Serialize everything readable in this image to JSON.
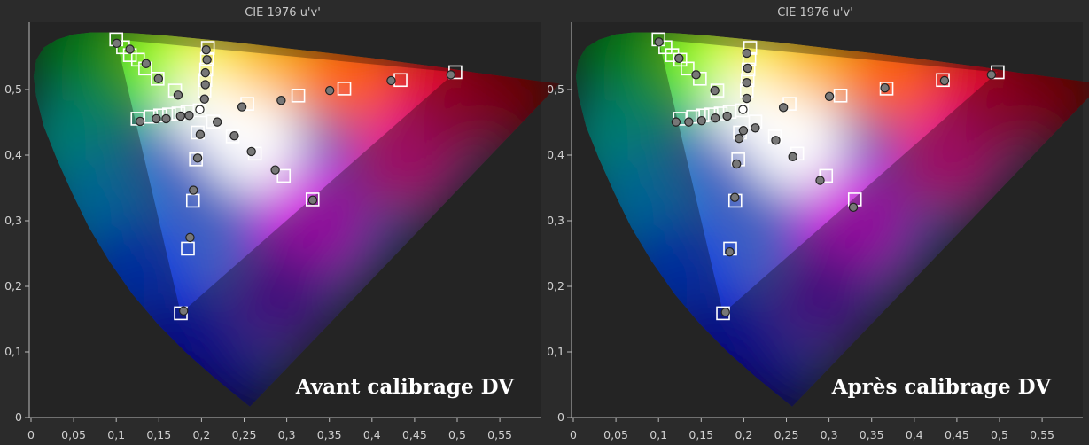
{
  "chart_data": [
    {
      "type": "scatter",
      "title": "CIE 1976 u'v'",
      "caption": "Avant calibrage  DV",
      "x_ticks": [
        "0",
        "0,05",
        "0,1",
        "0,15",
        "0,2",
        "0,25",
        "0,3",
        "0,35",
        "0,4",
        "0,45",
        "0,5",
        "0,55"
      ],
      "y_ticks": [
        "0",
        "0,1",
        "0,2",
        "0,3",
        "0,4",
        "0,5"
      ],
      "xlim": [
        0,
        0.6
      ],
      "ylim": [
        0,
        0.6
      ],
      "grid": false,
      "series": [
        {
          "name": "",
          "marker": "open-square",
          "color": "#ffffff",
          "points": [
            [
              0.1978,
              0.4683
            ],
            [
              0.1,
              0.5765
            ],
            [
              0.108,
              0.5645
            ],
            [
              0.116,
              0.5525
            ],
            [
              0.1255,
              0.5455
            ],
            [
              0.134,
              0.532
            ],
            [
              0.1485,
              0.5165
            ],
            [
              0.169,
              0.4985
            ],
            [
              0.2075,
              0.5635
            ],
            [
              0.2065,
              0.5465
            ],
            [
              0.2055,
              0.5305
            ],
            [
              0.2045,
              0.5145
            ],
            [
              0.2035,
              0.4985
            ],
            [
              0.125,
              0.4555
            ],
            [
              0.1405,
              0.4585
            ],
            [
              0.1515,
              0.4605
            ],
            [
              0.162,
              0.462
            ],
            [
              0.173,
              0.4635
            ],
            [
              0.1835,
              0.466
            ],
            [
              0.1955,
              0.4345
            ],
            [
              0.1935,
              0.3935
            ],
            [
              0.19,
              0.3305
            ],
            [
              0.184,
              0.2575
            ],
            [
              0.1757,
              0.1589
            ],
            [
              0.2136,
              0.4512
            ],
            [
              0.2366,
              0.4285
            ],
            [
              0.2626,
              0.4023
            ],
            [
              0.2965,
              0.3684
            ],
            [
              0.3303,
              0.3325
            ],
            [
              0.2537,
              0.4782
            ],
            [
              0.3135,
              0.4908
            ],
            [
              0.3675,
              0.5015
            ],
            [
              0.4335,
              0.5145
            ],
            [
              0.4978,
              0.5264
            ]
          ]
        },
        {
          "name": "",
          "marker": "filled-circle",
          "color": "#777777",
          "points": [
            [
              0.198,
              0.4695
            ],
            [
              0.1005,
              0.5705
            ],
            [
              0.116,
              0.5615
            ],
            [
              0.135,
              0.5395
            ],
            [
              0.1495,
              0.5165
            ],
            [
              0.1725,
              0.4915
            ],
            [
              0.2055,
              0.5605
            ],
            [
              0.2065,
              0.5455
            ],
            [
              0.2045,
              0.5255
            ],
            [
              0.2045,
              0.5075
            ],
            [
              0.2035,
              0.4855
            ],
            [
              0.128,
              0.4515
            ],
            [
              0.147,
              0.4555
            ],
            [
              0.1585,
              0.4555
            ],
            [
              0.1755,
              0.4595
            ],
            [
              0.1855,
              0.4605
            ],
            [
              0.1985,
              0.4315
            ],
            [
              0.1955,
              0.3955
            ],
            [
              0.1905,
              0.3465
            ],
            [
              0.1865,
              0.2745
            ],
            [
              0.179,
              0.1625
            ],
            [
              0.2185,
              0.4505
            ],
            [
              0.2385,
              0.4295
            ],
            [
              0.2585,
              0.4055
            ],
            [
              0.2865,
              0.3775
            ],
            [
              0.3305,
              0.3315
            ],
            [
              0.2475,
              0.4735
            ],
            [
              0.2935,
              0.4835
            ],
            [
              0.3505,
              0.4985
            ],
            [
              0.4225,
              0.5135
            ],
            [
              0.4925,
              0.5225
            ]
          ]
        }
      ]
    },
    {
      "type": "scatter",
      "title": "CIE 1976 u'v'",
      "caption": "Après calibrage DV",
      "x_ticks": [
        "0",
        "0,05",
        "0,1",
        "0,15",
        "0,2",
        "0,25",
        "0,3",
        "0,35",
        "0,4",
        "0,45",
        "0,5",
        "0,55"
      ],
      "y_ticks": [
        "0",
        "0,1",
        "0,2",
        "0,3",
        "0,4",
        "0,5"
      ],
      "xlim": [
        0,
        0.6
      ],
      "ylim": [
        0,
        0.6
      ],
      "grid": false,
      "series": [
        {
          "name": "",
          "marker": "open-square",
          "color": "#ffffff",
          "points": [
            [
              0.1978,
              0.4683
            ],
            [
              0.1,
              0.5765
            ],
            [
              0.108,
              0.5645
            ],
            [
              0.116,
              0.5525
            ],
            [
              0.1255,
              0.5455
            ],
            [
              0.134,
              0.532
            ],
            [
              0.1485,
              0.5165
            ],
            [
              0.169,
              0.4985
            ],
            [
              0.2075,
              0.5635
            ],
            [
              0.2065,
              0.5465
            ],
            [
              0.2055,
              0.5305
            ],
            [
              0.2045,
              0.5145
            ],
            [
              0.2035,
              0.4985
            ],
            [
              0.125,
              0.4555
            ],
            [
              0.1405,
              0.4585
            ],
            [
              0.1515,
              0.4605
            ],
            [
              0.162,
              0.462
            ],
            [
              0.173,
              0.4635
            ],
            [
              0.1835,
              0.466
            ],
            [
              0.1955,
              0.4345
            ],
            [
              0.1935,
              0.3935
            ],
            [
              0.19,
              0.3305
            ],
            [
              0.184,
              0.2575
            ],
            [
              0.1757,
              0.1589
            ],
            [
              0.2136,
              0.4512
            ],
            [
              0.2366,
              0.4285
            ],
            [
              0.2626,
              0.4023
            ],
            [
              0.2965,
              0.3684
            ],
            [
              0.3303,
              0.3325
            ],
            [
              0.2537,
              0.4782
            ],
            [
              0.3135,
              0.4908
            ],
            [
              0.3675,
              0.5015
            ],
            [
              0.4335,
              0.5145
            ],
            [
              0.4978,
              0.5264
            ]
          ]
        },
        {
          "name": "",
          "marker": "filled-circle",
          "color": "#777777",
          "points": [
            [
              0.199,
              0.4695
            ],
            [
              0.1005,
              0.5725
            ],
            [
              0.124,
              0.5475
            ],
            [
              0.144,
              0.5225
            ],
            [
              0.166,
              0.4985
            ],
            [
              0.2035,
              0.5555
            ],
            [
              0.2045,
              0.5325
            ],
            [
              0.2035,
              0.5105
            ],
            [
              0.2035,
              0.4865
            ],
            [
              0.1205,
              0.4505
            ],
            [
              0.1355,
              0.4505
            ],
            [
              0.1505,
              0.4525
            ],
            [
              0.1665,
              0.4565
            ],
            [
              0.1805,
              0.4595
            ],
            [
              0.1995,
              0.4375
            ],
            [
              0.1945,
              0.4255
            ],
            [
              0.1915,
              0.3865
            ],
            [
              0.1895,
              0.3355
            ],
            [
              0.1835,
              0.2525
            ],
            [
              0.1785,
              0.1605
            ],
            [
              0.2135,
              0.4415
            ],
            [
              0.2375,
              0.4225
            ],
            [
              0.2575,
              0.3975
            ],
            [
              0.2895,
              0.3615
            ],
            [
              0.3285,
              0.3205
            ],
            [
              0.2465,
              0.4725
            ],
            [
              0.3005,
              0.4895
            ],
            [
              0.3655,
              0.5025
            ],
            [
              0.4355,
              0.5135
            ],
            [
              0.4905,
              0.5225
            ]
          ]
        }
      ]
    }
  ]
}
